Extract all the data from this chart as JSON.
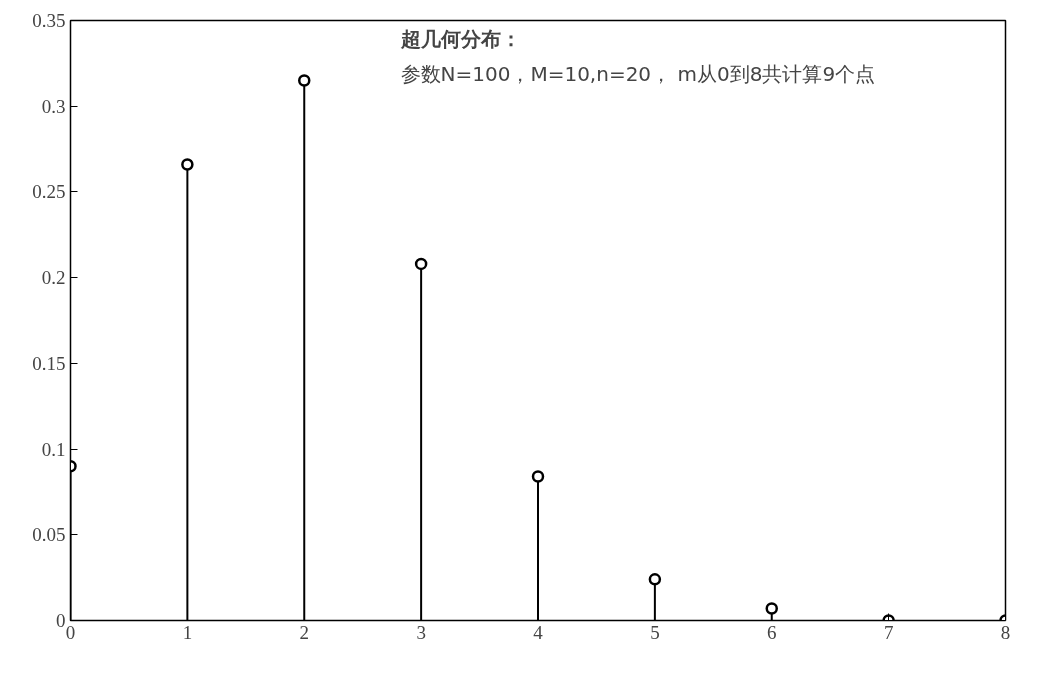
{
  "chart_data": {
    "type": "lollipop",
    "x": [
      0,
      1,
      2,
      3,
      4,
      5,
      6,
      7,
      8
    ],
    "values": [
      0.09,
      0.266,
      0.315,
      0.208,
      0.084,
      0.024,
      0.007,
      0,
      0
    ],
    "color": "#000000",
    "marker": "circle",
    "xlim": [
      0,
      8
    ],
    "xticks": [
      0,
      1,
      2,
      3,
      4,
      5,
      6,
      7,
      8
    ],
    "ylim": [
      0,
      0.35
    ],
    "yticks": [
      0,
      0.05,
      0.1,
      0.15,
      0.2,
      0.25,
      0.3,
      0.35
    ],
    "annotations": [
      "超几何分布：",
      "参数N=100，M=10,n=20， m从0到8共计算9个点"
    ]
  }
}
